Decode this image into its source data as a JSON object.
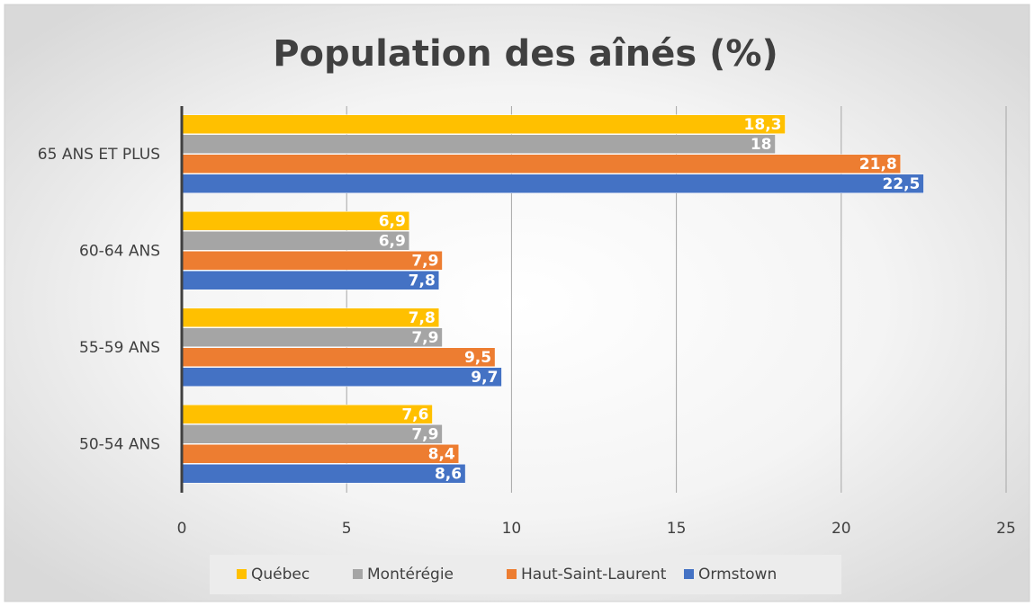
{
  "chart_data": {
    "type": "bar",
    "orientation": "horizontal",
    "title": "Population des aînés (%)",
    "categories": [
      "65 ANS ET PLUS",
      "60-64 ANS",
      "55-59 ANS",
      "50-54 ANS"
    ],
    "series": [
      {
        "name": "Québec",
        "color": "#ffc000",
        "values": [
          18.3,
          6.9,
          7.8,
          7.6
        ],
        "value_labels": [
          "18,3",
          "6,9",
          "7,8",
          "7,6"
        ]
      },
      {
        "name": "Montérégie",
        "color": "#a5a5a5",
        "values": [
          18,
          6.9,
          7.9,
          7.9
        ],
        "value_labels": [
          "18",
          "6,9",
          "7,9",
          "7,9"
        ]
      },
      {
        "name": "Haut-Saint-Laurent",
        "color": "#ed7d31",
        "values": [
          21.8,
          7.9,
          9.5,
          8.4
        ],
        "value_labels": [
          "21,8",
          "7,9",
          "9,5",
          "8,4"
        ]
      },
      {
        "name": "Ormstown",
        "color": "#4472c4",
        "values": [
          22.5,
          7.8,
          9.7,
          8.6
        ],
        "value_labels": [
          "22,5",
          "7,8",
          "9,7",
          "8,6"
        ]
      }
    ],
    "xlim": [
      0,
      25
    ],
    "xticks": [
      0,
      5,
      10,
      15,
      20,
      25
    ],
    "grid": true,
    "legend": "bottom"
  }
}
